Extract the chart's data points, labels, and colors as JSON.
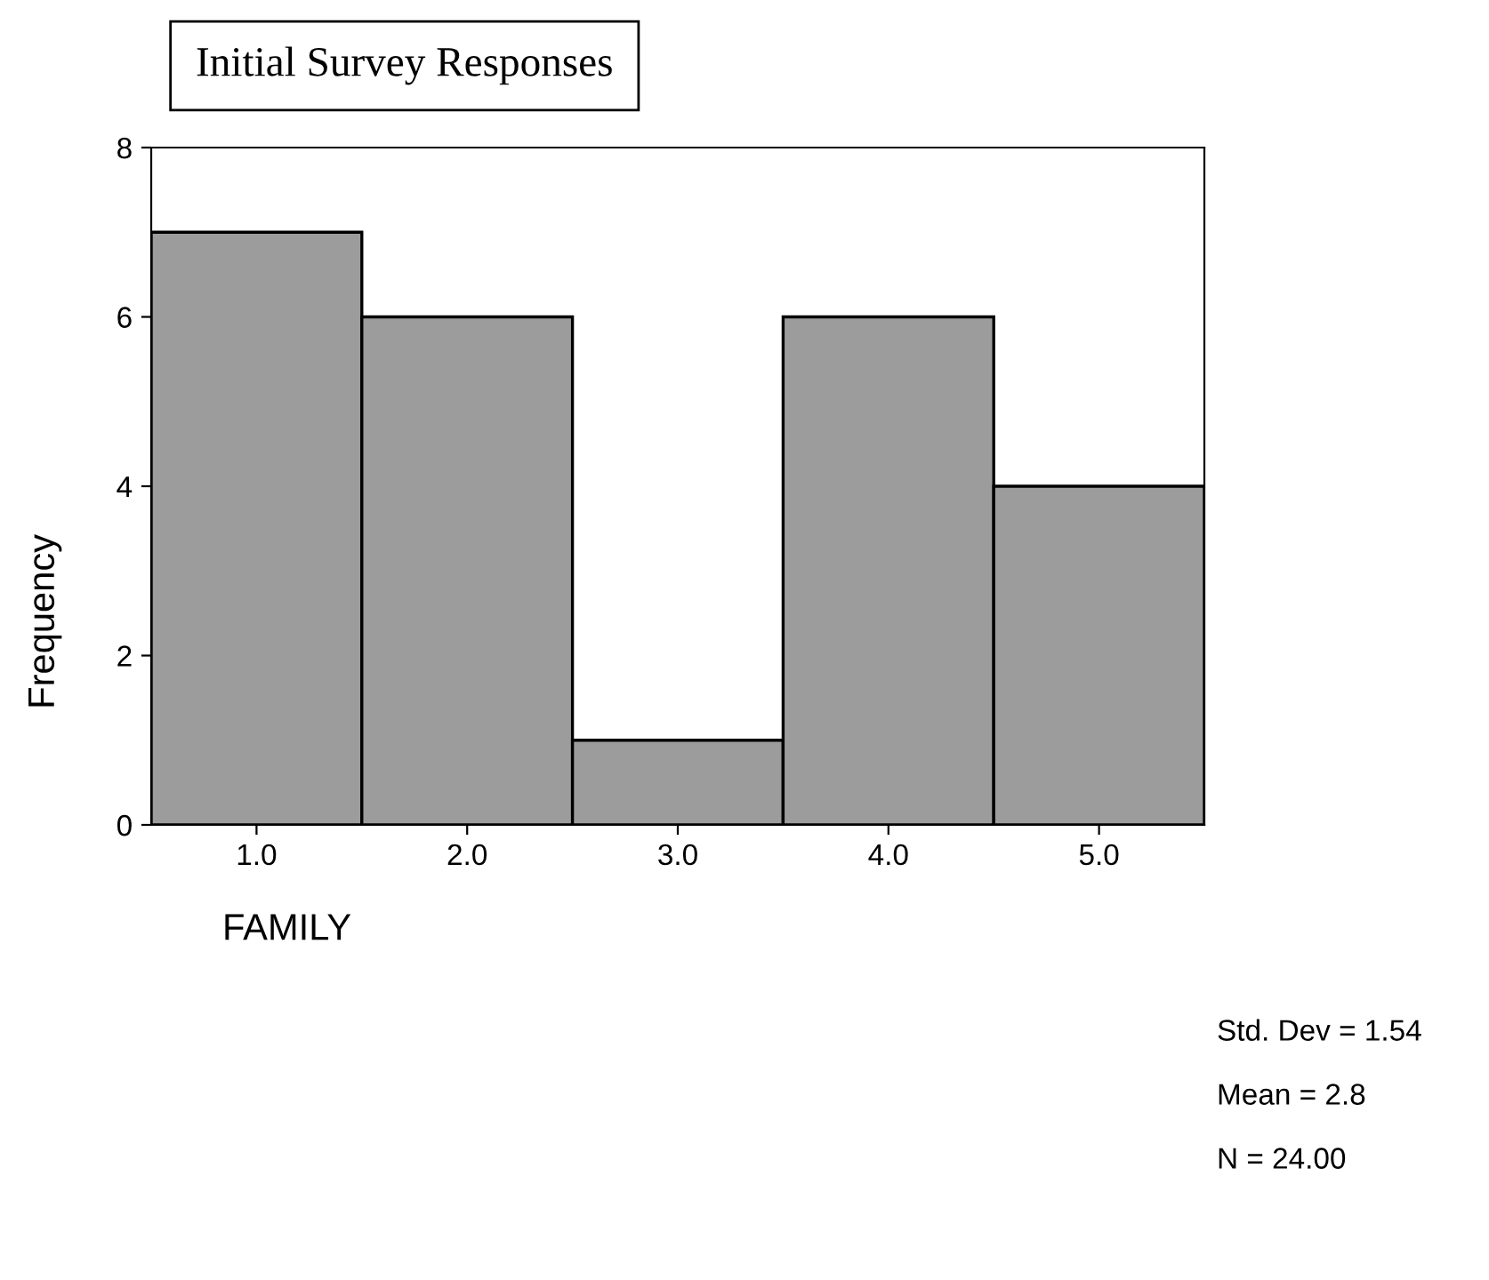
{
  "chart_data": {
    "type": "histogram",
    "title": "Initial Survey Responses",
    "xlabel": "FAMILY",
    "ylabel": "Frequency",
    "bins": [
      0.5,
      1.5,
      2.5,
      3.5,
      4.5,
      5.5
    ],
    "values": [
      7,
      6,
      1,
      6,
      4
    ],
    "color": "#9c9c9c",
    "xlim": [
      0.5,
      5.5
    ],
    "ylim": [
      0,
      8
    ],
    "xticks": [
      {
        "value": 1,
        "label": "1.0"
      },
      {
        "value": 2,
        "label": "2.0"
      },
      {
        "value": 3,
        "label": "3.0"
      },
      {
        "value": 4,
        "label": "4.0"
      },
      {
        "value": 5,
        "label": "5.0"
      }
    ],
    "yticks": [
      0,
      2,
      4,
      6,
      8
    ],
    "grid": false,
    "legend": false,
    "annotations": [
      "Std. Dev = 1.54",
      "Mean = 2.8",
      "N = 24.00"
    ]
  }
}
